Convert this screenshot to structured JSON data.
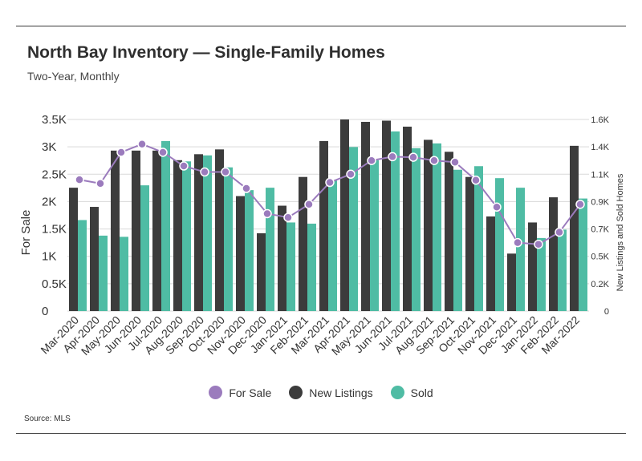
{
  "title": "North Bay Inventory — Single-Family Homes",
  "subtitle": "Two-Year, Monthly",
  "source": "Source:  MLS",
  "colors": {
    "for_sale": "#9b7bbd",
    "new_listings": "#3c3c3c",
    "sold": "#4fbca4",
    "grid": "#d9d9d9"
  },
  "legend": [
    {
      "key": "for_sale",
      "label": "For Sale"
    },
    {
      "key": "new_listings",
      "label": "New Listings"
    },
    {
      "key": "sold",
      "label": "Sold"
    }
  ],
  "chart_data": {
    "type": "bar",
    "categories": [
      "Mar-2020",
      "Apr-2020",
      "May-2020",
      "Jun-2020",
      "Jul-2020",
      "Aug-2020",
      "Sep-2020",
      "Oct-2020",
      "Nov-2020",
      "Dec-2020",
      "Jan-2021",
      "Feb-2021",
      "Mar-2021",
      "Apr-2021",
      "May-2021",
      "Jun-2021",
      "Jul-2021",
      "Aug-2021",
      "Sep-2021",
      "Oct-2021",
      "Nov-2021",
      "Dec-2021",
      "Jan-2022",
      "Feb-2022",
      "Mar-2022"
    ],
    "ylabel": "For Sale",
    "y2label": "New Listings and Sold Homes",
    "ylim": [
      0,
      3500
    ],
    "y2lim": [
      0,
      1600
    ],
    "yticks": [
      "0",
      "0.5K",
      "1K",
      "1.5K",
      "2K",
      "2.5K",
      "3K",
      "3.5K"
    ],
    "y2ticks": [
      "0",
      "0.2K",
      "0.5K",
      "0.7K",
      "0.9K",
      "1.1K",
      "1.4K",
      "1.6K"
    ],
    "series": [
      {
        "name": "New Listings",
        "type": "bar",
        "axis": "right",
        "values": [
          1030,
          870,
          1340,
          1340,
          1340,
          1260,
          1310,
          1350,
          960,
          650,
          880,
          1120,
          1420,
          1600,
          1580,
          1590,
          1540,
          1430,
          1330,
          1120,
          790,
          480,
          740,
          950,
          1380
        ]
      },
      {
        "name": "Sold",
        "type": "bar",
        "axis": "right",
        "values": [
          760,
          630,
          620,
          1050,
          1420,
          1250,
          1300,
          1200,
          1010,
          1030,
          740,
          730,
          1090,
          1370,
          1260,
          1500,
          1360,
          1400,
          1180,
          1210,
          1110,
          1030,
          610,
          680,
          940
        ]
      },
      {
        "name": "For Sale",
        "type": "line",
        "axis": "left",
        "values": [
          2400,
          2330,
          2900,
          3050,
          2900,
          2650,
          2540,
          2540,
          2240,
          1780,
          1710,
          1950,
          2350,
          2500,
          2750,
          2820,
          2810,
          2750,
          2720,
          2390,
          1900,
          1250,
          1220,
          1440,
          1950
        ]
      }
    ],
    "grid": true,
    "legend_position": "bottom"
  }
}
